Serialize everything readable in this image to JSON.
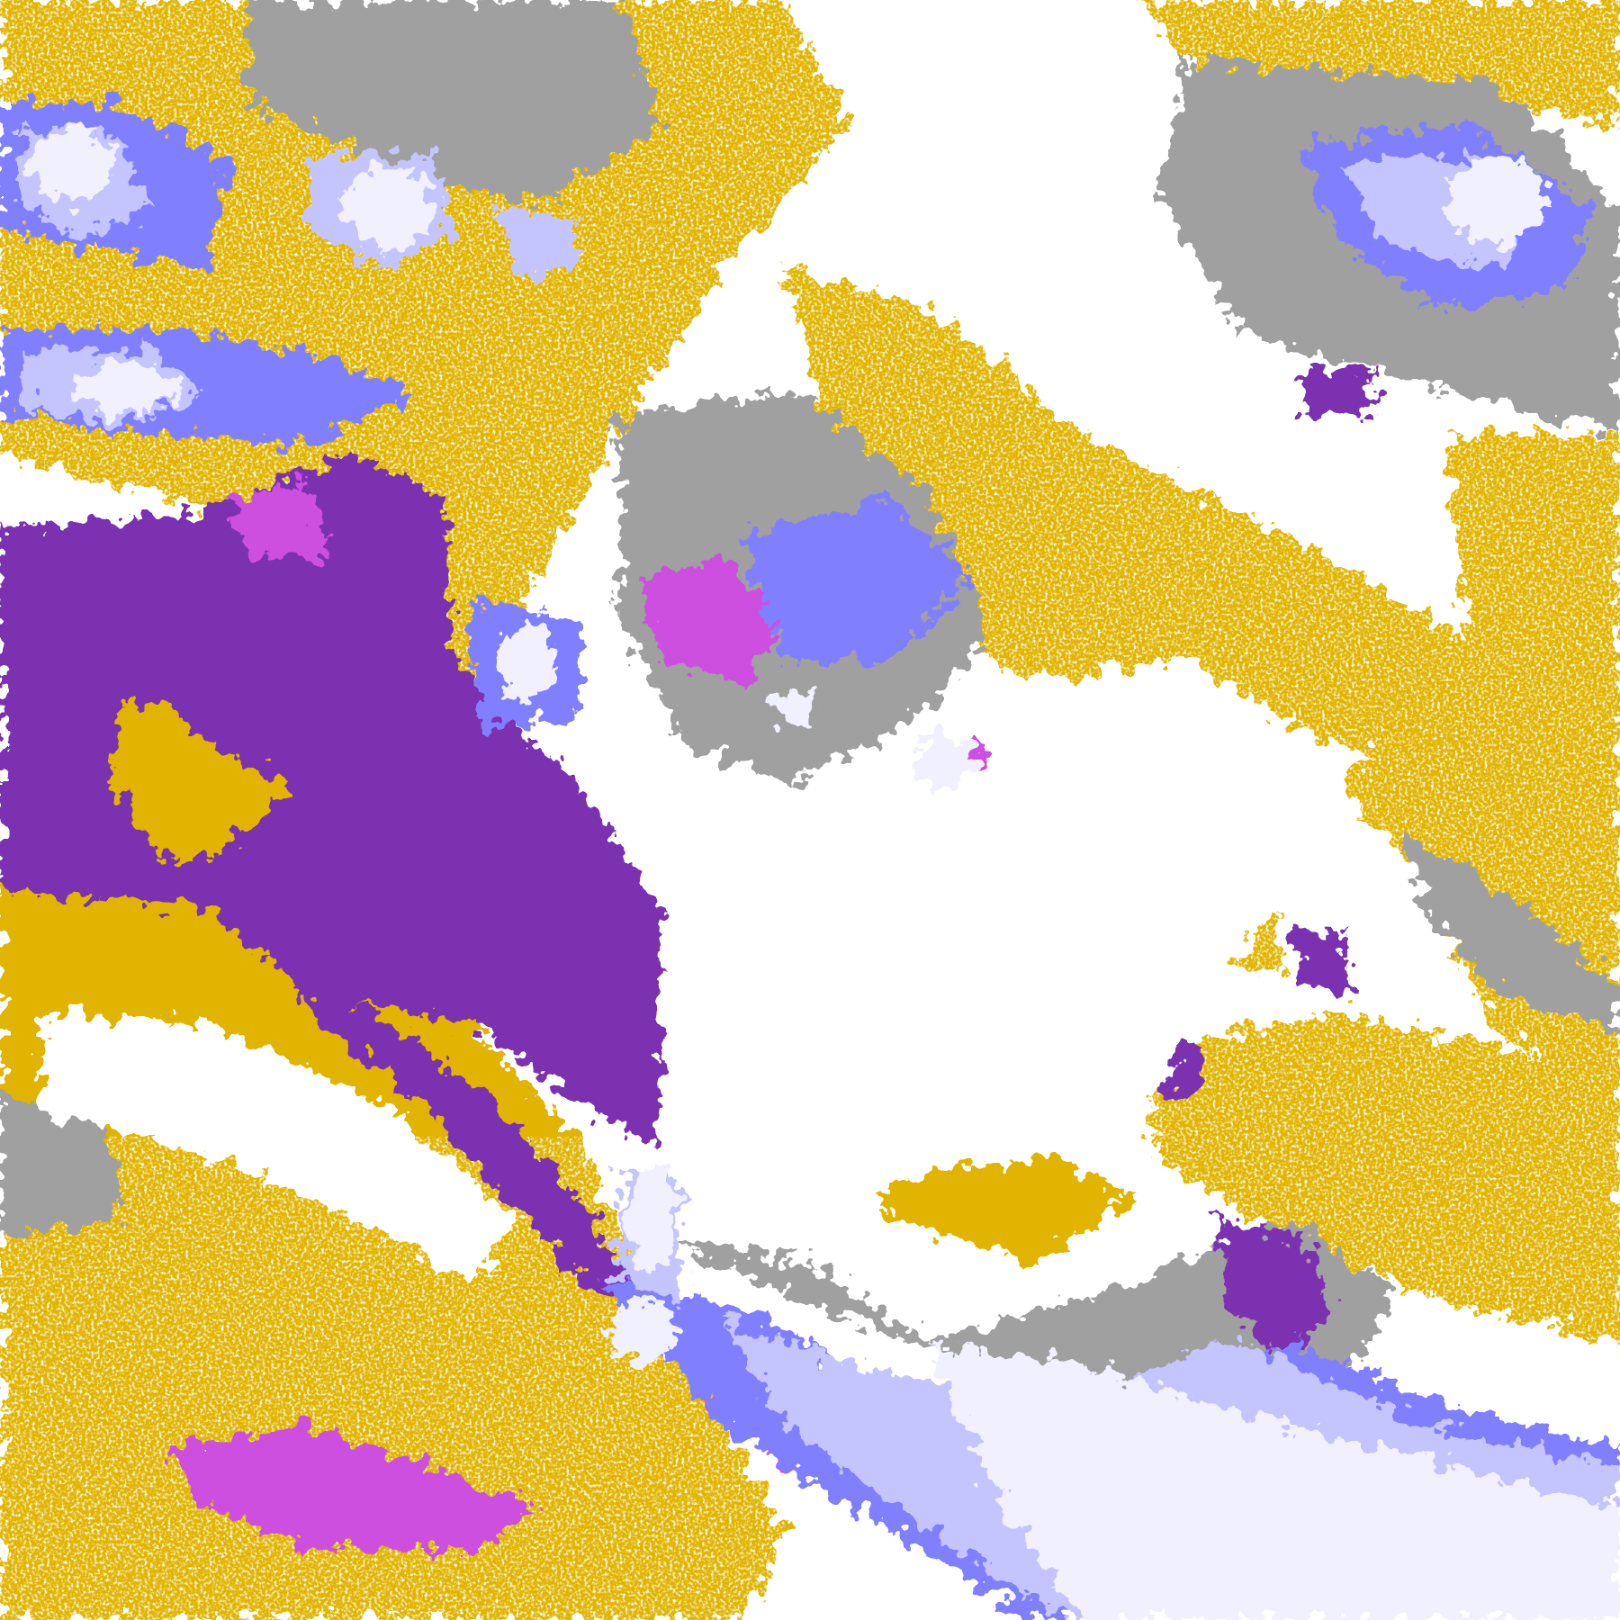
{
  "image": {
    "kind": "satellite cloud-type classification",
    "legend_visible": false,
    "palette": {
      "clear": "#ffffff",
      "gold_dark": "#c89200",
      "gold": "#e0b400",
      "purple": "#7b30b0",
      "magenta": "#cc50e0",
      "gray": "#a0a0a0",
      "periwinkle": "#8080ff",
      "lavender": "#c4c4ff",
      "pale": "#f0f0ff"
    }
  }
}
